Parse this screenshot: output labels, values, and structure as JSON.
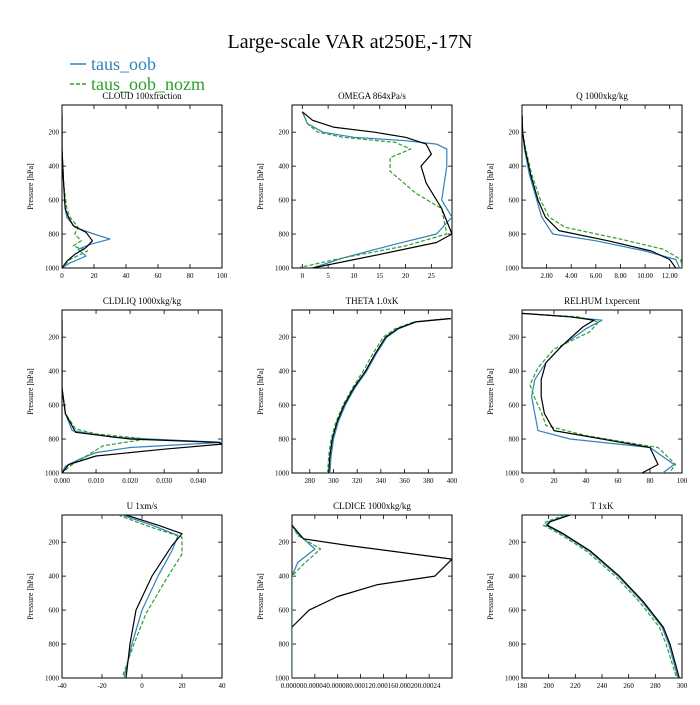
{
  "figure": {
    "title": "Large-scale VAR at250E,-17N",
    "ylabel": "Pressure [hPa]"
  },
  "legend": [
    {
      "name": "taus_oob",
      "color": "#3182bd"
    },
    {
      "name": "taus_oob_nozm",
      "color": "#2ca02c"
    }
  ],
  "chart_data": [
    {
      "type": "line",
      "title": "CLOUD  100xfraction",
      "xlim": [
        0,
        100
      ],
      "ylim": [
        1000,
        40
      ],
      "xticks": [
        "0",
        "20",
        "40",
        "60",
        "80",
        "100"
      ],
      "yticks": [
        "200",
        "400",
        "600",
        "800",
        "1000"
      ],
      "series": [
        {
          "name": "taus_oob",
          "color": "#3182bd",
          "dashed": false,
          "x": [
            0,
            0,
            1,
            2,
            3,
            8,
            20,
            30,
            18,
            10,
            15,
            5,
            0
          ],
          "y": [
            100,
            300,
            500,
            650,
            700,
            760,
            800,
            830,
            860,
            890,
            930,
            970,
            1000
          ]
        },
        {
          "name": "taus_oob_nozm",
          "color": "#2ca02c",
          "dashed": true,
          "x": [
            0,
            0,
            1,
            3,
            5,
            10,
            8,
            12,
            7,
            16,
            5,
            0
          ],
          "y": [
            100,
            300,
            500,
            650,
            700,
            760,
            800,
            840,
            870,
            900,
            950,
            1000
          ]
        },
        {
          "name": "",
          "color": "#000000",
          "dashed": false,
          "x": [
            0,
            0,
            1,
            2,
            4,
            7,
            15,
            19,
            15,
            8,
            3,
            0
          ],
          "y": [
            100,
            300,
            500,
            650,
            700,
            750,
            790,
            840,
            880,
            920,
            960,
            1000
          ]
        }
      ]
    },
    {
      "type": "line",
      "title": "OMEGA  864xPa/s",
      "xlim": [
        -2,
        29
      ],
      "ylim": [
        1000,
        40
      ],
      "xticks": [
        "0",
        "5",
        "10",
        "15",
        "20",
        "25"
      ],
      "yticks": [
        "200",
        "400",
        "600",
        "800",
        "1000"
      ],
      "series": [
        {
          "name": "taus_oob",
          "color": "#3182bd",
          "dashed": false,
          "x": [
            0,
            1,
            4,
            10,
            20,
            26,
            28,
            28,
            27,
            29,
            26,
            18,
            8,
            2
          ],
          "y": [
            80,
            150,
            200,
            230,
            250,
            270,
            300,
            400,
            600,
            700,
            800,
            860,
            940,
            1000
          ]
        },
        {
          "name": "taus_oob_nozm",
          "color": "#2ca02c",
          "dashed": true,
          "x": [
            0,
            1,
            3,
            8,
            18,
            21,
            17,
            17,
            22,
            27,
            28,
            20,
            8,
            -1
          ],
          "y": [
            80,
            150,
            200,
            230,
            260,
            300,
            350,
            430,
            560,
            650,
            800,
            870,
            940,
            1000
          ]
        },
        {
          "name": "",
          "color": "#000000",
          "dashed": false,
          "x": [
            0,
            2,
            6,
            14,
            20,
            24,
            25,
            23,
            24,
            27,
            29,
            26,
            15,
            2
          ],
          "y": [
            80,
            130,
            170,
            200,
            230,
            270,
            330,
            400,
            500,
            650,
            800,
            850,
            920,
            1000
          ]
        }
      ]
    },
    {
      "type": "line",
      "title": "Q  1000xkg/kg",
      "xlim": [
        0,
        13
      ],
      "ylim": [
        1000,
        40
      ],
      "xticks": [
        "2.00",
        "4.00",
        "6.00",
        "8.00",
        "10.00",
        "12.00"
      ],
      "yticks": [
        "200",
        "400",
        "600",
        "800",
        "1000"
      ],
      "series": [
        {
          "name": "taus_oob",
          "color": "#3182bd",
          "dashed": false,
          "x": [
            0.01,
            0.05,
            0.2,
            0.6,
            1.2,
            1.6,
            2.5,
            6,
            10,
            12.5,
            12.8
          ],
          "y": [
            100,
            200,
            300,
            450,
            600,
            700,
            800,
            840,
            900,
            950,
            1000
          ]
        },
        {
          "name": "taus_oob_nozm",
          "color": "#2ca02c",
          "dashed": true,
          "x": [
            0.01,
            0.05,
            0.3,
            0.8,
            1.5,
            2.2,
            3.5,
            8,
            11.5,
            12.9,
            13
          ],
          "y": [
            100,
            200,
            300,
            450,
            600,
            700,
            760,
            830,
            890,
            950,
            1000
          ]
        },
        {
          "name": "",
          "color": "#000000",
          "dashed": false,
          "x": [
            0.01,
            0.05,
            0.25,
            0.7,
            1.3,
            1.9,
            3,
            7,
            10.5,
            12,
            12.5
          ],
          "y": [
            100,
            200,
            300,
            450,
            600,
            700,
            780,
            840,
            900,
            950,
            1000
          ]
        }
      ]
    },
    {
      "type": "line",
      "title": "CLDLIQ  1000xkg/kg",
      "xlim": [
        0,
        0.047
      ],
      "ylim": [
        1000,
        40
      ],
      "xticks": [
        "0.000",
        "0.010",
        "0.020",
        "0.030",
        "0.040"
      ],
      "yticks": [
        "200",
        "400",
        "600",
        "800",
        "1000"
      ],
      "series": [
        {
          "name": "taus_oob",
          "color": "#3182bd",
          "dashed": false,
          "x": [
            0,
            0,
            0.001,
            0.003,
            0.015,
            0.047,
            0.02,
            0.01,
            0.005,
            0.001,
            0
          ],
          "y": [
            100,
            500,
            650,
            750,
            790,
            820,
            850,
            880,
            920,
            960,
            1000
          ]
        },
        {
          "name": "taus_oob_nozm",
          "color": "#2ca02c",
          "dashed": true,
          "x": [
            0,
            0,
            0.001,
            0.004,
            0.01,
            0.025,
            0.012,
            0.008,
            0.003,
            0
          ],
          "y": [
            100,
            500,
            650,
            740,
            770,
            800,
            840,
            890,
            950,
            1000
          ]
        },
        {
          "name": "",
          "color": "#000000",
          "dashed": false,
          "x": [
            0,
            0,
            0.001,
            0.004,
            0.02,
            0.046,
            0.047,
            0.03,
            0.01,
            0.002,
            0
          ],
          "y": [
            100,
            500,
            650,
            760,
            800,
            820,
            830,
            860,
            900,
            950,
            1000
          ]
        }
      ]
    },
    {
      "type": "line",
      "title": "THETA  1.0xK",
      "xlim": [
        265,
        400
      ],
      "ylim": [
        1000,
        40
      ],
      "xticks": [
        "280",
        "300",
        "320",
        "340",
        "360",
        "380",
        "400"
      ],
      "yticks": [
        "200",
        "400",
        "600",
        "800",
        "1000"
      ],
      "series": [
        {
          "name": "taus_oob",
          "color": "#3182bd",
          "dashed": false,
          "x": [
            400,
            370,
            355,
            345,
            336,
            328,
            318,
            310,
            304,
            300,
            298,
            297
          ],
          "y": [
            90,
            110,
            150,
            200,
            300,
            400,
            500,
            600,
            700,
            800,
            900,
            1000
          ]
        },
        {
          "name": "taus_oob_nozm",
          "color": "#2ca02c",
          "dashed": true,
          "x": [
            398,
            368,
            352,
            342,
            333,
            325,
            316,
            308,
            302,
            298,
            296,
            295
          ],
          "y": [
            90,
            110,
            150,
            200,
            300,
            400,
            500,
            600,
            700,
            800,
            900,
            1000
          ]
        },
        {
          "name": "",
          "color": "#000000",
          "dashed": false,
          "x": [
            399,
            369,
            354,
            344,
            335,
            327,
            317,
            309,
            303,
            299,
            297,
            296
          ],
          "y": [
            90,
            110,
            150,
            200,
            300,
            400,
            500,
            600,
            700,
            800,
            900,
            1000
          ]
        }
      ]
    },
    {
      "type": "line",
      "title": "RELHUM  1xpercent",
      "xlim": [
        0,
        100
      ],
      "ylim": [
        1000,
        40
      ],
      "xticks": [
        "0",
        "20",
        "40",
        "60",
        "80",
        "100"
      ],
      "yticks": [
        "200",
        "400",
        "600",
        "800",
        "1000"
      ],
      "series": [
        {
          "name": "taus_oob",
          "color": "#3182bd",
          "dashed": false,
          "x": [
            0,
            30,
            50,
            40,
            25,
            15,
            8,
            6,
            8,
            10,
            30,
            80,
            95,
            88
          ],
          "y": [
            60,
            80,
            100,
            150,
            250,
            350,
            450,
            550,
            650,
            750,
            800,
            850,
            950,
            1000
          ]
        },
        {
          "name": "taus_oob_nozm",
          "color": "#2ca02c",
          "dashed": true,
          "x": [
            0,
            35,
            48,
            42,
            20,
            10,
            5,
            8,
            12,
            15,
            40,
            85,
            96,
            92
          ],
          "y": [
            60,
            80,
            110,
            170,
            270,
            380,
            480,
            560,
            640,
            720,
            780,
            850,
            950,
            1000
          ]
        },
        {
          "name": "",
          "color": "#000000",
          "dashed": false,
          "x": [
            0,
            30,
            45,
            38,
            25,
            15,
            12,
            12,
            14,
            20,
            50,
            80,
            85,
            75
          ],
          "y": [
            60,
            80,
            100,
            140,
            250,
            350,
            450,
            550,
            650,
            750,
            800,
            850,
            950,
            1000
          ]
        }
      ]
    },
    {
      "type": "line",
      "title": "U  1xm/s",
      "xlim": [
        -40,
        40
      ],
      "ylim": [
        1000,
        40
      ],
      "xticks": [
        "-40",
        "-20",
        "0",
        "20",
        "40"
      ],
      "yticks": [
        "200",
        "400",
        "600",
        "800",
        "1000"
      ],
      "series": [
        {
          "name": "taus_oob",
          "color": "#3182bd",
          "dashed": false,
          "x": [
            -10,
            5,
            18,
            15,
            8,
            0,
            -5,
            -9
          ],
          "y": [
            40,
            100,
            160,
            250,
            400,
            600,
            800,
            1000
          ]
        },
        {
          "name": "taus_oob_nozm",
          "color": "#2ca02c",
          "dashed": true,
          "x": [
            -12,
            4,
            20,
            20,
            12,
            2,
            -4,
            -10
          ],
          "y": [
            40,
            110,
            170,
            270,
            420,
            620,
            800,
            1000
          ]
        },
        {
          "name": "",
          "color": "#000000",
          "dashed": false,
          "x": [
            -8,
            8,
            20,
            15,
            5,
            -3,
            -6,
            -8
          ],
          "y": [
            40,
            100,
            150,
            220,
            400,
            600,
            800,
            1000
          ]
        }
      ]
    },
    {
      "type": "line",
      "title": "CLDICE  1000xkg/kg",
      "xlim": [
        0,
        0.00028
      ],
      "ylim": [
        1000,
        40
      ],
      "xticks": [
        "0.00000",
        "0.00004",
        "0.00008",
        "0.00012",
        "0.00016",
        "0.00020",
        "0.00024"
      ],
      "yticks": [
        "200",
        "400",
        "600",
        "800",
        "1000"
      ],
      "series": [
        {
          "name": "taus_oob",
          "color": "#3182bd",
          "dashed": false,
          "x": [
            0,
            1e-05,
            4e-05,
            1e-05,
            0,
            0
          ],
          "y": [
            100,
            150,
            240,
            320,
            400,
            1000
          ]
        },
        {
          "name": "taus_oob_nozm",
          "color": "#2ca02c",
          "dashed": true,
          "x": [
            0,
            1e-05,
            5e-05,
            2e-05,
            0,
            0
          ],
          "y": [
            100,
            160,
            240,
            330,
            400,
            1000
          ]
        },
        {
          "name": "",
          "color": "#000000",
          "dashed": false,
          "x": [
            0,
            2e-05,
            0.0001,
            0.00028,
            0.00025,
            0.00015,
            8e-05,
            3e-05,
            0
          ],
          "y": [
            100,
            180,
            220,
            300,
            400,
            450,
            520,
            600,
            700
          ]
        }
      ]
    },
    {
      "type": "line",
      "title": "T  1xK",
      "xlim": [
        180,
        300
      ],
      "ylim": [
        1000,
        40
      ],
      "xticks": [
        "180",
        "200",
        "220",
        "240",
        "260",
        "280",
        "300"
      ],
      "yticks": [
        "200",
        "400",
        "600",
        "800",
        "1000"
      ],
      "series": [
        {
          "name": "taus_oob",
          "color": "#3182bd",
          "dashed": false,
          "x": [
            215,
            200,
            198,
            210,
            230,
            252,
            270,
            285,
            290,
            297
          ],
          "y": [
            40,
            80,
            100,
            150,
            250,
            400,
            550,
            700,
            800,
            1000
          ]
        },
        {
          "name": "taus_oob_nozm",
          "color": "#2ca02c",
          "dashed": true,
          "x": [
            212,
            198,
            196,
            208,
            228,
            250,
            268,
            283,
            288,
            296
          ],
          "y": [
            40,
            80,
            100,
            150,
            250,
            400,
            550,
            700,
            800,
            1000
          ]
        },
        {
          "name": "",
          "color": "#000000",
          "dashed": false,
          "x": [
            216,
            201,
            199,
            211,
            231,
            253,
            271,
            286,
            291,
            298
          ],
          "y": [
            40,
            80,
            100,
            150,
            250,
            400,
            550,
            700,
            800,
            1000
          ]
        }
      ]
    }
  ]
}
